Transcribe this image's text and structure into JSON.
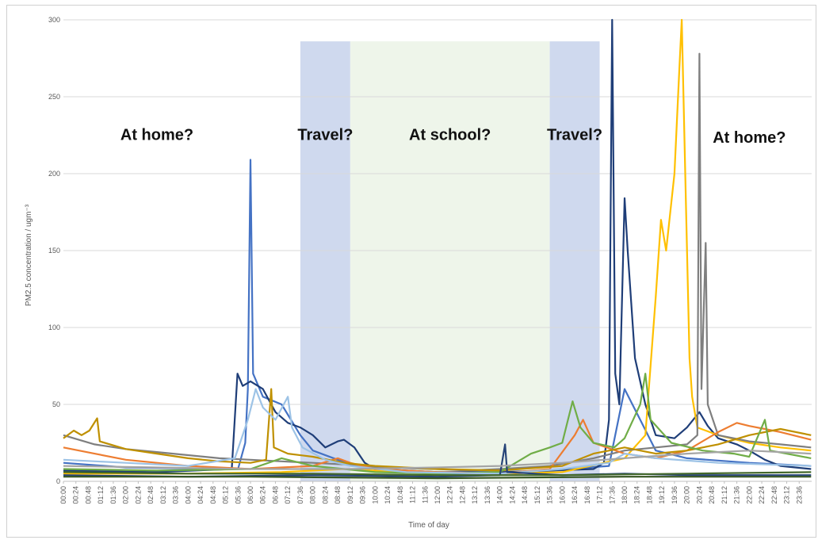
{
  "chart_data": {
    "type": "line",
    "xlabel": "Time of day",
    "ylabel": "PM2.5 concentration / ugm⁻³",
    "ylim": [
      0,
      300
    ],
    "yticks": [
      0,
      50,
      100,
      150,
      200,
      250,
      300
    ],
    "xlim_minutes": [
      0,
      1440
    ],
    "x_tick_labels": [
      "00:00",
      "00:24",
      "00:48",
      "01:12",
      "01:36",
      "02:00",
      "02:24",
      "02:48",
      "03:12",
      "03:36",
      "04:00",
      "04:24",
      "04:48",
      "05:12",
      "05:36",
      "06:00",
      "06:24",
      "06:48",
      "07:12",
      "07:36",
      "08:00",
      "08:24",
      "08:48",
      "09:12",
      "09:36",
      "10:00",
      "10:24",
      "10:48",
      "11:12",
      "11:36",
      "12:00",
      "12:24",
      "12:48",
      "13:12",
      "13:36",
      "14:00",
      "14:24",
      "14:48",
      "15:12",
      "15:36",
      "16:00",
      "16:24",
      "16:48",
      "17:12",
      "17:36",
      "18:00",
      "18:24",
      "18:48",
      "19:12",
      "19:36",
      "20:00",
      "20:24",
      "20:48",
      "21:12",
      "21:36",
      "22:00",
      "22:24",
      "22:48",
      "23:12",
      "23:36"
    ],
    "grid": true,
    "legend": "none",
    "shaded_periods": [
      {
        "start": "07:36",
        "end": "09:12",
        "color": "#cfd9ee"
      },
      {
        "start": "09:12",
        "end": "15:36",
        "color": "#eef5ea"
      },
      {
        "start": "15:36",
        "end": "17:12",
        "color": "#cfd9ee"
      }
    ],
    "annotations": [
      {
        "text": "At home?",
        "x": "03:00",
        "y": 222
      },
      {
        "text": "Travel?",
        "x": "08:24",
        "y": 222
      },
      {
        "text": "At school?",
        "x": "12:24",
        "y": 222
      },
      {
        "text": "Travel?",
        "x": "16:24",
        "y": 222
      },
      {
        "text": "At home?",
        "x": "22:00",
        "y": 220
      }
    ],
    "series": [
      {
        "color": "#4472c4",
        "points": [
          [
            "00:00",
            12
          ],
          [
            "02:00",
            9
          ],
          [
            "05:36",
            8
          ],
          [
            "05:50",
            25
          ],
          [
            "05:55",
            60
          ],
          [
            "06:00",
            209
          ],
          [
            "06:05",
            70
          ],
          [
            "06:24",
            55
          ],
          [
            "07:00",
            50
          ],
          [
            "07:36",
            30
          ],
          [
            "08:00",
            20
          ],
          [
            "08:48",
            14
          ],
          [
            "09:36",
            9
          ],
          [
            "12:00",
            5
          ],
          [
            "14:30",
            5
          ],
          [
            "15:36",
            7
          ],
          [
            "17:30",
            10
          ],
          [
            "18:00",
            60
          ],
          [
            "18:30",
            40
          ],
          [
            "19:00",
            20
          ],
          [
            "20:00",
            15
          ],
          [
            "22:00",
            12
          ],
          [
            "23:59",
            10
          ]
        ]
      },
      {
        "color": "#1f3e78",
        "points": [
          [
            "00:00",
            7
          ],
          [
            "03:00",
            6
          ],
          [
            "05:24",
            8
          ],
          [
            "05:35",
            70
          ],
          [
            "05:45",
            62
          ],
          [
            "06:00",
            65
          ],
          [
            "06:24",
            60
          ],
          [
            "06:48",
            45
          ],
          [
            "07:12",
            38
          ],
          [
            "07:36",
            35
          ],
          [
            "08:00",
            30
          ],
          [
            "08:24",
            22
          ],
          [
            "08:48",
            26
          ],
          [
            "09:00",
            27
          ],
          [
            "09:20",
            22
          ],
          [
            "09:40",
            12
          ],
          [
            "10:00",
            8
          ],
          [
            "12:00",
            6
          ],
          [
            "14:00",
            6
          ],
          [
            "15:36",
            7
          ],
          [
            "17:00",
            8
          ],
          [
            "17:20",
            12
          ],
          [
            "17:30",
            40
          ],
          [
            "17:36",
            300
          ],
          [
            "17:42",
            70
          ],
          [
            "17:50",
            50
          ],
          [
            "18:00",
            184
          ],
          [
            "18:06",
            150
          ],
          [
            "18:20",
            80
          ],
          [
            "18:40",
            50
          ],
          [
            "19:00",
            30
          ],
          [
            "19:36",
            28
          ],
          [
            "20:00",
            35
          ],
          [
            "20:24",
            45
          ],
          [
            "20:40",
            36
          ],
          [
            "21:00",
            28
          ],
          [
            "21:36",
            24
          ],
          [
            "22:00",
            20
          ],
          [
            "22:30",
            14
          ],
          [
            "23:00",
            10
          ],
          [
            "23:59",
            8
          ]
        ]
      },
      {
        "color": "#ffc000",
        "points": [
          [
            "00:00",
            5
          ],
          [
            "04:00",
            5
          ],
          [
            "07:00",
            6
          ],
          [
            "09:00",
            8
          ],
          [
            "11:00",
            6
          ],
          [
            "14:00",
            5
          ],
          [
            "16:00",
            6
          ],
          [
            "18:00",
            15
          ],
          [
            "18:40",
            30
          ],
          [
            "19:00",
            120
          ],
          [
            "19:10",
            170
          ],
          [
            "19:20",
            150
          ],
          [
            "19:36",
            200
          ],
          [
            "19:45",
            265
          ],
          [
            "19:50",
            300
          ],
          [
            "19:58",
            180
          ],
          [
            "20:05",
            80
          ],
          [
            "20:10",
            55
          ],
          [
            "20:20",
            35
          ],
          [
            "21:00",
            30
          ],
          [
            "22:00",
            25
          ],
          [
            "23:00",
            22
          ],
          [
            "23:59",
            20
          ]
        ]
      },
      {
        "color": "#7f7f7f",
        "points": [
          [
            "00:00",
            30
          ],
          [
            "01:00",
            24
          ],
          [
            "02:00",
            21
          ],
          [
            "03:00",
            19
          ],
          [
            "04:00",
            17
          ],
          [
            "05:00",
            15
          ],
          [
            "06:00",
            14
          ],
          [
            "07:00",
            13
          ],
          [
            "08:00",
            12
          ],
          [
            "09:00",
            11
          ],
          [
            "10:00",
            9
          ],
          [
            "12:00",
            8
          ],
          [
            "13:00",
            7
          ],
          [
            "14:00",
            8
          ],
          [
            "15:36",
            10
          ],
          [
            "17:00",
            15
          ],
          [
            "18:00",
            20
          ],
          [
            "19:00",
            22
          ],
          [
            "20:00",
            24
          ],
          [
            "20:20",
            30
          ],
          [
            "20:24",
            278
          ],
          [
            "20:28",
            60
          ],
          [
            "20:36",
            155
          ],
          [
            "20:40",
            50
          ],
          [
            "21:00",
            30
          ],
          [
            "22:00",
            26
          ],
          [
            "23:00",
            24
          ],
          [
            "23:59",
            22
          ]
        ]
      },
      {
        "color": "#ed7d31",
        "points": [
          [
            "00:00",
            22
          ],
          [
            "01:00",
            18
          ],
          [
            "02:00",
            14
          ],
          [
            "03:00",
            12
          ],
          [
            "04:00",
            10
          ],
          [
            "05:00",
            9
          ],
          [
            "06:00",
            8
          ],
          [
            "07:00",
            9
          ],
          [
            "08:00",
            10
          ],
          [
            "08:48",
            15
          ],
          [
            "09:12",
            12
          ],
          [
            "10:00",
            8
          ],
          [
            "12:00",
            6
          ],
          [
            "14:00",
            5
          ],
          [
            "15:36",
            8
          ],
          [
            "16:24",
            30
          ],
          [
            "16:40",
            40
          ],
          [
            "17:00",
            25
          ],
          [
            "18:00",
            18
          ],
          [
            "19:00",
            15
          ],
          [
            "20:00",
            20
          ],
          [
            "21:00",
            32
          ],
          [
            "21:36",
            38
          ],
          [
            "22:00",
            36
          ],
          [
            "22:30",
            34
          ],
          [
            "23:00",
            32
          ],
          [
            "23:59",
            27
          ]
        ]
      },
      {
        "color": "#bf9000",
        "points": [
          [
            "00:00",
            28
          ],
          [
            "00:20",
            33
          ],
          [
            "00:35",
            30
          ],
          [
            "00:50",
            33
          ],
          [
            "01:05",
            41
          ],
          [
            "01:10",
            26
          ],
          [
            "02:00",
            21
          ],
          [
            "03:00",
            18
          ],
          [
            "04:00",
            15
          ],
          [
            "05:00",
            13
          ],
          [
            "06:00",
            12
          ],
          [
            "06:30",
            14
          ],
          [
            "06:40",
            60
          ],
          [
            "06:45",
            22
          ],
          [
            "07:12",
            18
          ],
          [
            "08:00",
            16
          ],
          [
            "09:00",
            12
          ],
          [
            "10:00",
            10
          ],
          [
            "12:00",
            8
          ],
          [
            "14:00",
            7
          ],
          [
            "16:00",
            10
          ],
          [
            "17:00",
            18
          ],
          [
            "18:00",
            22
          ],
          [
            "19:00",
            18
          ],
          [
            "20:00",
            20
          ],
          [
            "21:00",
            24
          ],
          [
            "22:00",
            30
          ],
          [
            "23:00",
            34
          ],
          [
            "23:59",
            30
          ]
        ]
      },
      {
        "color": "#70ad47",
        "points": [
          [
            "00:00",
            8
          ],
          [
            "03:00",
            7
          ],
          [
            "06:00",
            8
          ],
          [
            "07:00",
            15
          ],
          [
            "08:00",
            10
          ],
          [
            "10:00",
            6
          ],
          [
            "12:00",
            5
          ],
          [
            "14:00",
            6
          ],
          [
            "15:00",
            18
          ],
          [
            "15:36",
            22
          ],
          [
            "16:00",
            25
          ],
          [
            "16:20",
            52
          ],
          [
            "16:35",
            35
          ],
          [
            "17:00",
            25
          ],
          [
            "17:40",
            22
          ],
          [
            "18:00",
            28
          ],
          [
            "18:30",
            50
          ],
          [
            "18:40",
            70
          ],
          [
            "18:50",
            40
          ],
          [
            "19:30",
            25
          ],
          [
            "20:30",
            20
          ],
          [
            "21:30",
            18
          ],
          [
            "22:00",
            16
          ],
          [
            "22:30",
            40
          ],
          [
            "22:40",
            20
          ],
          [
            "23:59",
            15
          ]
        ]
      },
      {
        "color": "#9dc3e6",
        "points": [
          [
            "00:00",
            14
          ],
          [
            "02:00",
            12
          ],
          [
            "04:00",
            10
          ],
          [
            "05:30",
            15
          ],
          [
            "05:55",
            40
          ],
          [
            "06:10",
            60
          ],
          [
            "06:24",
            48
          ],
          [
            "06:48",
            40
          ],
          [
            "07:12",
            55
          ],
          [
            "07:20",
            35
          ],
          [
            "07:40",
            22
          ],
          [
            "08:24",
            14
          ],
          [
            "09:12",
            10
          ],
          [
            "11:00",
            6
          ],
          [
            "14:00",
            5
          ],
          [
            "16:00",
            8
          ],
          [
            "17:30",
            12
          ],
          [
            "18:00",
            18
          ],
          [
            "19:00",
            15
          ],
          [
            "21:00",
            12
          ],
          [
            "23:59",
            10
          ]
        ]
      },
      {
        "color": "#264478",
        "points": [
          [
            "00:00",
            4
          ],
          [
            "04:00",
            3
          ],
          [
            "08:00",
            4
          ],
          [
            "12:00",
            3
          ],
          [
            "14:00",
            4
          ],
          [
            "14:10",
            24
          ],
          [
            "14:14",
            6
          ],
          [
            "16:00",
            4
          ],
          [
            "18:00",
            5
          ],
          [
            "20:00",
            4
          ],
          [
            "23:59",
            4
          ]
        ]
      },
      {
        "color": "#a5a5a5",
        "points": [
          [
            "00:00",
            10
          ],
          [
            "03:00",
            9
          ],
          [
            "06:00",
            8
          ],
          [
            "09:00",
            8
          ],
          [
            "12:00",
            9
          ],
          [
            "14:00",
            10
          ],
          [
            "16:00",
            12
          ],
          [
            "18:00",
            15
          ],
          [
            "20:00",
            18
          ],
          [
            "22:00",
            20
          ],
          [
            "23:59",
            18
          ]
        ]
      },
      {
        "color": "#375623",
        "points": [
          [
            "00:00",
            3
          ],
          [
            "06:00",
            3
          ],
          [
            "12:00",
            2
          ],
          [
            "18:00",
            3
          ],
          [
            "23:59",
            3
          ]
        ]
      },
      {
        "color": "#43682b",
        "points": [
          [
            "00:00",
            6
          ],
          [
            "04:00",
            5
          ],
          [
            "08:00",
            5
          ],
          [
            "12:00",
            4
          ],
          [
            "16:00",
            4
          ],
          [
            "20:00",
            5
          ],
          [
            "23:59",
            6
          ]
        ]
      }
    ]
  }
}
